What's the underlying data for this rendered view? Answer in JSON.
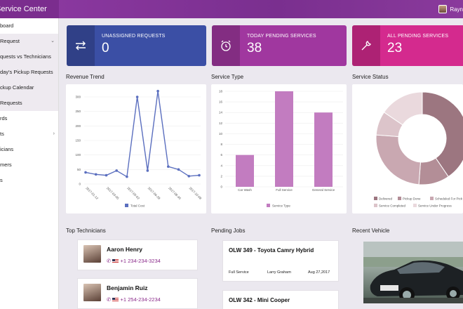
{
  "app": {
    "title": "Service Center",
    "user_name": "Rayn"
  },
  "sidebar": {
    "items": [
      {
        "label": "board",
        "chevron": "",
        "active": false
      },
      {
        "label": "Request",
        "chevron": "⌄",
        "active": true
      },
      {
        "label": "quests vs Technicians",
        "chevron": "",
        "active": true
      },
      {
        "label": "day's Pickup Requests",
        "chevron": "",
        "active": true
      },
      {
        "label": "ckup Calendar",
        "chevron": "",
        "active": true
      },
      {
        "label": "Requests",
        "chevron": "",
        "active": true
      },
      {
        "label": "rds",
        "chevron": "",
        "active": false
      },
      {
        "label": "ts",
        "chevron": "›",
        "active": false
      },
      {
        "label": "icians",
        "chevron": "",
        "active": false
      },
      {
        "label": "mers",
        "chevron": "",
        "active": false
      },
      {
        "label": "s",
        "chevron": "",
        "active": false
      }
    ]
  },
  "stats": [
    {
      "label": "UNASSIGNED REQUESTS",
      "value": "0",
      "icon": "arrows-swap-icon",
      "color": "#3b4fa5"
    },
    {
      "label": "TODAY PENDING SERVICES",
      "value": "38",
      "icon": "alarm-clock-icon",
      "color": "#a0379f"
    },
    {
      "label": "ALL PENDING SERVICES",
      "value": "23",
      "icon": "wrench-icon",
      "color": "#d42a8e"
    }
  ],
  "sections": {
    "revenue_trend": "Revenue Trend",
    "service_type": "Service Type",
    "service_status": "Service Status",
    "top_technicians": "Top Technicians",
    "pending_jobs": "Pending Jobs",
    "recent_vehicle": "Recent Vehicle"
  },
  "chart_data": [
    {
      "type": "line",
      "x": [
        "2017-01-12",
        "",
        "2017-03-05",
        "",
        "2017-05-02",
        "",
        "2017-06-28",
        "",
        "2017-08-30",
        "",
        "2017-10-08",
        ""
      ],
      "series": [
        {
          "name": "Total Cost",
          "values": [
            40,
            33,
            30,
            46,
            25,
            300,
            46,
            320,
            60,
            50,
            27,
            30
          ],
          "color": "#5b6fbf"
        }
      ],
      "ylim": [
        0,
        300
      ],
      "yticks": [
        0,
        50,
        100,
        150,
        200,
        250,
        300
      ],
      "legend": "bottom"
    },
    {
      "type": "bar",
      "categories": [
        "Car Wash",
        "Full Service",
        "General Service"
      ],
      "series": [
        {
          "name": "Service Type",
          "values": [
            6,
            18,
            14
          ],
          "color": "#c27cc0"
        }
      ],
      "ylim": [
        0,
        18
      ],
      "yticks": [
        0,
        2,
        4,
        6,
        8,
        10,
        12,
        14,
        16,
        18
      ],
      "legend": "bottom"
    },
    {
      "type": "pie",
      "labels": [
        "Delivered",
        "Pickup Done",
        "Scheduled For Pick",
        "Service Completed",
        "Service Under Progress"
      ],
      "values": [
        34,
        9,
        21,
        7,
        13
      ],
      "colors": [
        "#9c7680",
        "#b38e97",
        "#c9a8b1",
        "#dcc4ca",
        "#ead9dd"
      ],
      "legend": "bottom"
    }
  ],
  "technicians": [
    {
      "name": "Aaron Henry",
      "phone": "+1 234-234-3234"
    },
    {
      "name": "Benjamin Ruiz",
      "phone": "+1 254-234-2234"
    }
  ],
  "jobs": [
    {
      "title": "OLW 349 - Toyota Camry Hybrid",
      "service": "Full Service",
      "technician": "Larry Graham",
      "date": "Aug 27,2017"
    },
    {
      "title": "OLW 342 - Mini Cooper",
      "service": "",
      "technician": "",
      "date": ""
    }
  ]
}
